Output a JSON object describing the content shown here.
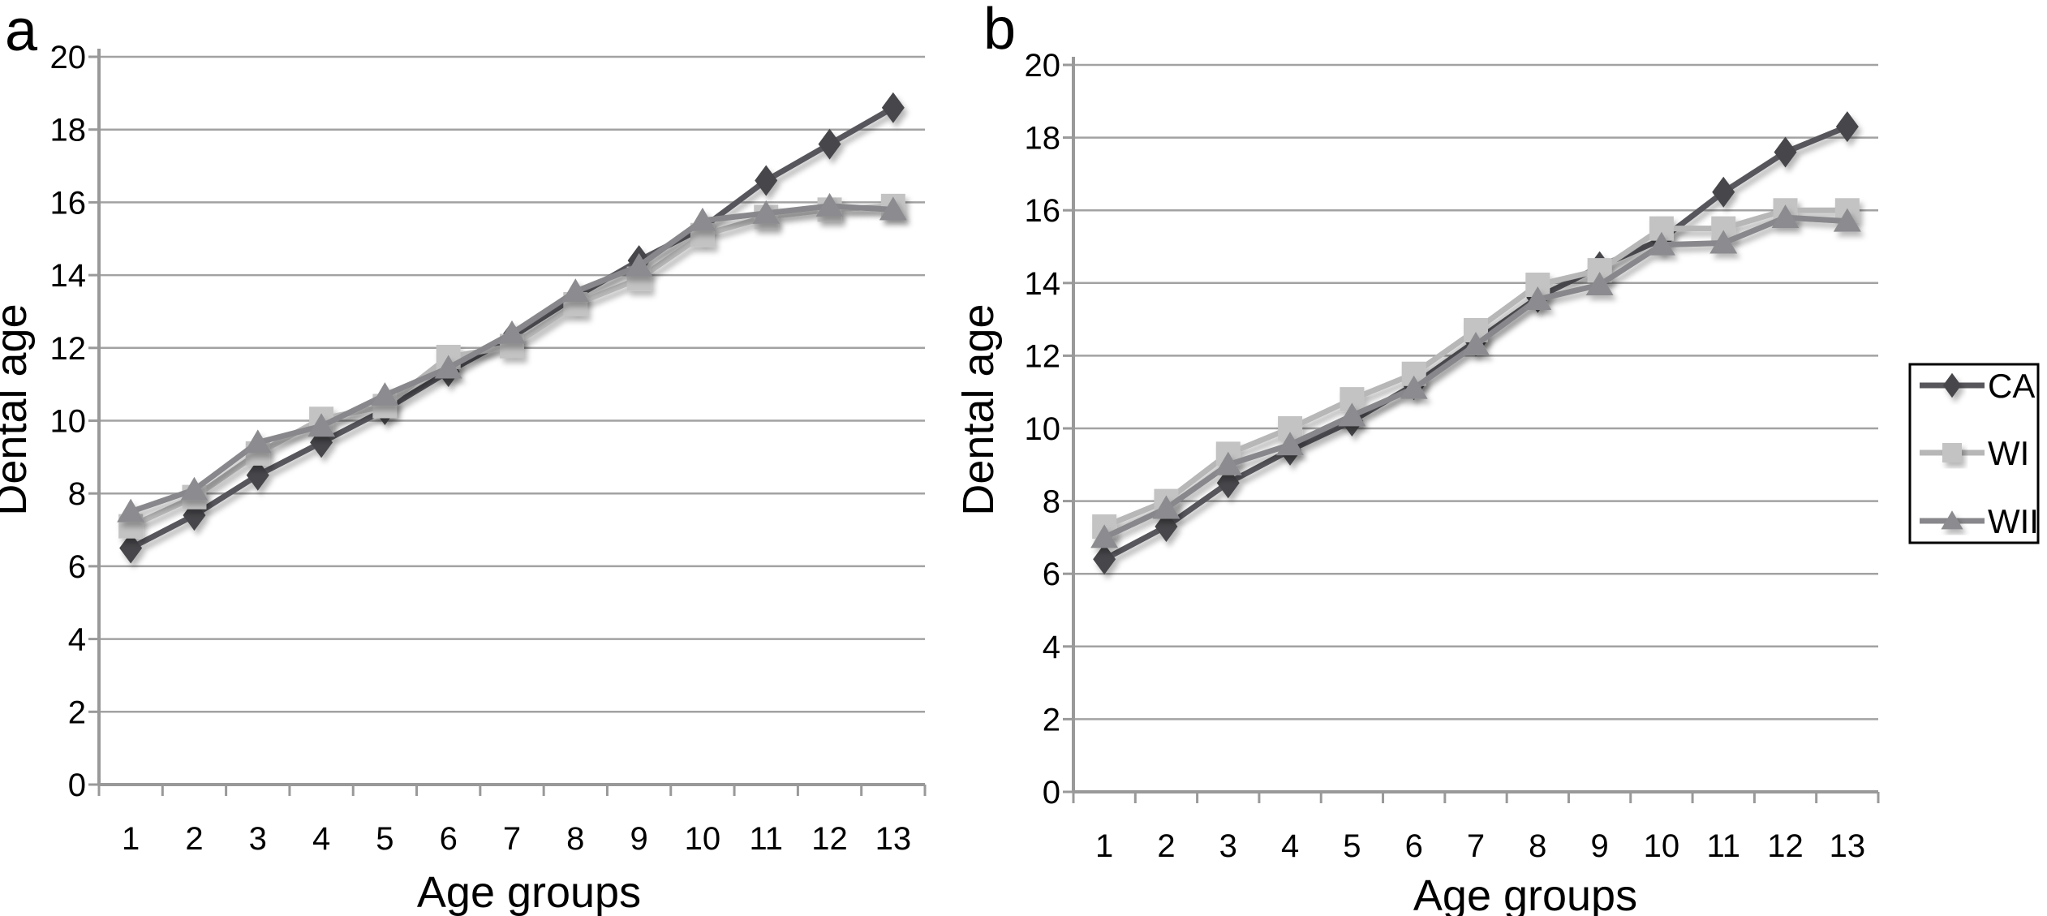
{
  "figure_title": "",
  "chart_data": [
    {
      "id": "a",
      "type": "line",
      "panel_label": "a",
      "xlabel": "Age groups",
      "ylabel": "Dental age",
      "categories": [
        "1",
        "2",
        "3",
        "4",
        "5",
        "6",
        "7",
        "8",
        "9",
        "10",
        "11",
        "12",
        "13"
      ],
      "ylim": [
        0,
        20
      ],
      "ytick_step": 2,
      "grid": true,
      "legend_position": "shared-right",
      "series": [
        {
          "name": "CA",
          "marker": "diamond",
          "values": [
            6.5,
            7.4,
            8.5,
            9.4,
            10.3,
            11.35,
            12.3,
            13.4,
            14.4,
            15.3,
            16.6,
            17.6,
            18.6
          ]
        },
        {
          "name": "WI",
          "marker": "square",
          "values": [
            7.1,
            7.9,
            9.1,
            10.05,
            10.4,
            11.75,
            12.05,
            13.2,
            13.9,
            15.1,
            15.6,
            15.8,
            15.9
          ]
        },
        {
          "name": "WII",
          "marker": "triangle",
          "values": [
            7.5,
            8.1,
            9.4,
            9.85,
            10.7,
            11.45,
            12.4,
            13.55,
            14.25,
            15.5,
            15.7,
            15.9,
            15.8
          ]
        }
      ]
    },
    {
      "id": "b",
      "type": "line",
      "panel_label": "b",
      "xlabel": "Age groups",
      "ylabel": "Dental age",
      "categories": [
        "1",
        "2",
        "3",
        "4",
        "5",
        "6",
        "7",
        "8",
        "9",
        "10",
        "11",
        "12",
        "13"
      ],
      "ylim": [
        0,
        20
      ],
      "ytick_step": 2,
      "grid": true,
      "legend_position": "shared-right",
      "series": [
        {
          "name": "CA",
          "marker": "diamond",
          "values": [
            6.4,
            7.3,
            8.5,
            9.4,
            10.2,
            11.2,
            12.4,
            13.6,
            14.45,
            15.2,
            16.5,
            17.6,
            18.3
          ]
        },
        {
          "name": "WI",
          "marker": "square",
          "values": [
            7.3,
            8.0,
            9.3,
            10.0,
            10.8,
            11.5,
            12.7,
            13.95,
            14.35,
            15.5,
            15.5,
            16.0,
            16.0
          ]
        },
        {
          "name": "WII",
          "marker": "triangle",
          "values": [
            7.0,
            7.8,
            9.0,
            9.55,
            10.35,
            11.1,
            12.3,
            13.55,
            13.95,
            15.05,
            15.1,
            15.8,
            15.7
          ]
        }
      ]
    }
  ],
  "legend": {
    "items": [
      {
        "label": "CA",
        "marker": "diamond"
      },
      {
        "label": "WI",
        "marker": "square"
      },
      {
        "label": "WII",
        "marker": "triangle"
      }
    ]
  },
  "colors": {
    "CA": {
      "line": "#57575b",
      "marker": "#47474b"
    },
    "WI": {
      "line": "#b7b7b7",
      "marker": "#c3c3c3"
    },
    "WII": {
      "line": "#88888c",
      "marker": "#8c8c90"
    },
    "grid": "#a2a2a2",
    "axis": "#999999",
    "text": "#000000",
    "legend_border": "#000000",
    "background": "#ffffff"
  }
}
